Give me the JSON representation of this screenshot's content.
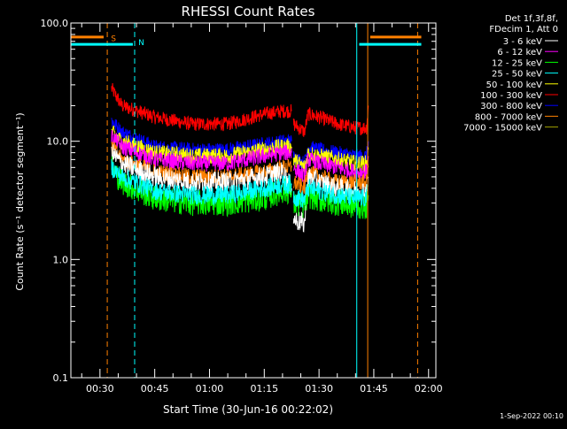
{
  "chart_data": {
    "type": "line",
    "title": "RHESSI Count Rates",
    "ylabel": "Count Rate (s⁻¹ detector segment⁻¹)",
    "xlabel": "Start Time (30-Jun-16 00:22:02)",
    "footer": "1-Sep-2022 00:10",
    "yscale": "log",
    "ylim": [
      0.1,
      100.0
    ],
    "xlim": [
      "00:22:02",
      "02:02:00"
    ],
    "y_ticks": [
      {
        "value": 100,
        "label": "100.0"
      },
      {
        "value": 10,
        "label": "10.0"
      },
      {
        "value": 1,
        "label": "1.0"
      },
      {
        "value": 0.1,
        "label": "0.1"
      }
    ],
    "x_ticks": [
      "00:30",
      "00:45",
      "01:00",
      "01:15",
      "01:30",
      "01:45",
      "02:00"
    ],
    "legend": {
      "header": [
        "Det 1f,3f,8f,",
        "FDecim 1, Att 0"
      ],
      "entries": [
        {
          "label": "3 - 6 keV",
          "color": "#ffffff"
        },
        {
          "label": "6 - 12 keV",
          "color": "#ff00ff"
        },
        {
          "label": "12 - 25 keV",
          "color": "#00ff00"
        },
        {
          "label": "25 - 50 keV",
          "color": "#00ffff"
        },
        {
          "label": "50 - 100 keV",
          "color": "#ffff00"
        },
        {
          "label": "100 - 300 keV",
          "color": "#ff0000"
        },
        {
          "label": "300 - 800 keV",
          "color": "#0000ff"
        },
        {
          "label": "800 - 7000 keV",
          "color": "#ff8000"
        },
        {
          "label": "7000 - 15000 keV",
          "color": "#a0a000"
        }
      ]
    },
    "series": [
      {
        "name": "100 - 300 keV",
        "color": "#ff0000",
        "noise": 0.06,
        "segments": [
          [
            [
              "00:33:10",
              28
            ],
            [
              "00:36:00",
              20
            ],
            [
              "00:45:00",
              16
            ],
            [
              "00:55:00",
              14
            ],
            [
              "01:05:00",
              14
            ],
            [
              "01:15:00",
              17
            ],
            [
              "01:20:00",
              18
            ],
            [
              "01:22:30",
              18
            ]
          ],
          [
            [
              "01:23:00",
              14
            ],
            [
              "01:26:00",
              12
            ],
            [
              "01:27:00",
              17
            ],
            [
              "01:30:00",
              16
            ],
            [
              "01:35:00",
              14
            ],
            [
              "01:40:00",
              13
            ],
            [
              "01:43:00",
              13
            ],
            [
              "01:43:30",
              20
            ]
          ]
        ]
      },
      {
        "name": "300 - 800 keV",
        "color": "#0000ff",
        "noise": 0.06,
        "segments": [
          [
            [
              "00:33:10",
              15
            ],
            [
              "00:36:00",
              12
            ],
            [
              "00:45:00",
              9
            ],
            [
              "00:55:00",
              8.5
            ],
            [
              "01:05:00",
              8.5
            ],
            [
              "01:15:00",
              9.5
            ],
            [
              "01:20:00",
              10
            ],
            [
              "01:22:30",
              10
            ]
          ],
          [
            [
              "01:23:00",
              7.5
            ],
            [
              "01:26:00",
              6.5
            ],
            [
              "01:27:00",
              9
            ],
            [
              "01:30:00",
              8.5
            ],
            [
              "01:35:00",
              8
            ],
            [
              "01:40:00",
              7.5
            ],
            [
              "01:43:00",
              7.5
            ],
            [
              "01:43:30",
              10
            ]
          ]
        ]
      },
      {
        "name": "50 - 100 keV",
        "color": "#ffff00",
        "noise": 0.07,
        "segments": [
          [
            [
              "00:33:10",
              12
            ],
            [
              "00:36:00",
              10
            ],
            [
              "00:45:00",
              8
            ],
            [
              "00:55:00",
              7.5
            ],
            [
              "01:05:00",
              7.5
            ],
            [
              "01:15:00",
              8.5
            ],
            [
              "01:20:00",
              9
            ],
            [
              "01:22:30",
              9
            ]
          ],
          [
            [
              "01:23:00",
              7
            ],
            [
              "01:26:00",
              6
            ],
            [
              "01:27:00",
              8
            ],
            [
              "01:30:00",
              7.5
            ],
            [
              "01:35:00",
              7
            ],
            [
              "01:40:00",
              6.5
            ],
            [
              "01:43:00",
              6.5
            ],
            [
              "01:43:30",
              8.5
            ]
          ]
        ]
      },
      {
        "name": "6 - 12 keV",
        "color": "#ff00ff",
        "noise": 0.07,
        "segments": [
          [
            [
              "00:33:10",
              11
            ],
            [
              "00:36:00",
              9
            ],
            [
              "00:45:00",
              7
            ],
            [
              "00:55:00",
              6.5
            ],
            [
              "01:05:00",
              6.5
            ],
            [
              "01:15:00",
              7.5
            ],
            [
              "01:20:00",
              8
            ],
            [
              "01:22:30",
              8
            ]
          ],
          [
            [
              "01:23:00",
              6
            ],
            [
              "01:26:00",
              5
            ],
            [
              "01:27:00",
              7
            ],
            [
              "01:30:00",
              6.5
            ],
            [
              "01:35:00",
              6
            ],
            [
              "01:40:00",
              5.5
            ],
            [
              "01:43:00",
              5.5
            ],
            [
              "01:43:30",
              7.5
            ]
          ]
        ]
      },
      {
        "name": "800 - 7000 keV",
        "color": "#ff8000",
        "noise": 0.07,
        "segments": [
          [
            [
              "00:33:10",
              9
            ],
            [
              "00:36:00",
              7
            ],
            [
              "00:45:00",
              5.5
            ],
            [
              "00:55:00",
              5
            ],
            [
              "01:05:00",
              5
            ],
            [
              "01:15:00",
              5.5
            ],
            [
              "01:20:00",
              6
            ],
            [
              "01:22:30",
              6
            ]
          ],
          [
            [
              "01:23:00",
              4.5
            ],
            [
              "01:26:00",
              4
            ],
            [
              "01:27:00",
              5.5
            ],
            [
              "01:30:00",
              5
            ],
            [
              "01:35:00",
              4.5
            ],
            [
              "01:40:00",
              4.5
            ],
            [
              "01:43:00",
              4.5
            ],
            [
              "01:43:30",
              6
            ]
          ]
        ]
      },
      {
        "name": "3 - 6 keV",
        "color": "#ffffff",
        "noise": 0.09,
        "segments": [
          [
            [
              "00:33:10",
              8
            ],
            [
              "00:36:00",
              6.5
            ],
            [
              "00:45:00",
              5
            ],
            [
              "00:55:00",
              4.5
            ],
            [
              "01:05:00",
              4.5
            ],
            [
              "01:15:00",
              5
            ],
            [
              "01:20:00",
              5.5
            ],
            [
              "01:22:30",
              4
            ]
          ],
          [
            [
              "01:23:00",
              2.2
            ],
            [
              "01:26:00",
              2
            ],
            [
              "01:27:00",
              5
            ],
            [
              "01:30:00",
              4.5
            ],
            [
              "01:35:00",
              4
            ],
            [
              "01:40:00",
              3.8
            ],
            [
              "01:43:00",
              3.8
            ],
            [
              "01:43:30",
              5
            ]
          ]
        ]
      },
      {
        "name": "12 - 25 keV",
        "color": "#00ff00",
        "noise": 0.11,
        "segments": [
          [
            [
              "00:33:10",
              6
            ],
            [
              "00:36:00",
              4.5
            ],
            [
              "00:45:00",
              3.3
            ],
            [
              "00:55:00",
              3
            ],
            [
              "01:05:00",
              3
            ],
            [
              "01:15:00",
              3.3
            ],
            [
              "01:20:00",
              3.8
            ],
            [
              "01:22:30",
              3.8
            ]
          ],
          [
            [
              "01:23:00",
              3
            ],
            [
              "01:26:00",
              2.8
            ],
            [
              "01:27:00",
              3.5
            ],
            [
              "01:30:00",
              3.2
            ],
            [
              "01:35:00",
              3
            ],
            [
              "01:40:00",
              2.8
            ],
            [
              "01:43:00",
              2.8
            ],
            [
              "01:43:30",
              3.5
            ]
          ]
        ]
      },
      {
        "name": "25 - 50 keV",
        "color": "#00ffff",
        "noise": 0.08,
        "segments": [
          [
            [
              "00:33:10",
              6
            ],
            [
              "00:36:00",
              5
            ],
            [
              "00:45:00",
              3.8
            ],
            [
              "00:55:00",
              3.5
            ],
            [
              "01:05:00",
              3.5
            ],
            [
              "01:15:00",
              4
            ],
            [
              "01:20:00",
              4.3
            ],
            [
              "01:22:30",
              4.3
            ]
          ],
          [
            [
              "01:23:00",
              3.4
            ],
            [
              "01:26:00",
              3.2
            ],
            [
              "01:27:00",
              4
            ],
            [
              "01:30:00",
              3.8
            ],
            [
              "01:35:00",
              3.5
            ],
            [
              "01:40:00",
              3.3
            ],
            [
              "01:43:00",
              3.3
            ],
            [
              "01:43:30",
              4.2
            ]
          ]
        ]
      }
    ],
    "vertical_lines": [
      {
        "time": "00:22:02",
        "color": "#00ffff",
        "style": "solid"
      },
      {
        "time": "00:32:00",
        "color": "#ff8000",
        "style": "dashed"
      },
      {
        "time": "00:39:30",
        "color": "#00ffff",
        "style": "dashed"
      },
      {
        "time": "01:40:20",
        "color": "#00ffff",
        "style": "solid"
      },
      {
        "time": "01:43:20",
        "color": "#ff8000",
        "style": "solid"
      },
      {
        "time": "01:57:00",
        "color": "#ff8000",
        "style": "dashed"
      }
    ],
    "annotations": [
      {
        "text": "S",
        "color": "#ff8000",
        "time": "00:33:00",
        "y": 70
      },
      {
        "text": "N",
        "color": "#00ffff",
        "time": "00:40:30",
        "y": 65
      }
    ],
    "flag_bars": [
      {
        "color": "#ff8000",
        "from": "00:22:02",
        "to": "00:31:00",
        "y": 76
      },
      {
        "color": "#00ffff",
        "from": "00:22:02",
        "to": "00:39:00",
        "y": 66
      },
      {
        "color": "#ff8000",
        "from": "01:44:00",
        "to": "01:58:00",
        "y": 76
      },
      {
        "color": "#00ffff",
        "from": "01:41:00",
        "to": "01:58:00",
        "y": 66
      }
    ]
  }
}
